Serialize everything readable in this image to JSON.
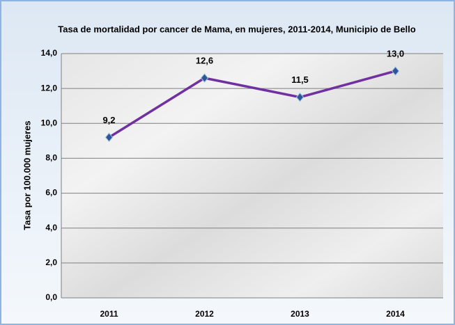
{
  "chart_data": {
    "type": "line",
    "title": "Tasa de mortalidad por cancer de Mama, en mujeres, 2011-2014, Municipio de Bello",
    "ylabel": "Tasa por 100.000 mujeres",
    "categories": [
      "2011",
      "2012",
      "2013",
      "2014"
    ],
    "series": [
      {
        "name": "Tasa",
        "color": "#7030a0",
        "marker_color": "#2f5597",
        "values": [
          9.2,
          12.6,
          11.5,
          13.0
        ],
        "value_labels": [
          "9,2",
          "12,6",
          "11,5",
          "13,0"
        ]
      }
    ],
    "ylim": [
      0,
      14
    ],
    "yticks": [
      {
        "value": 0,
        "label": "0,0"
      },
      {
        "value": 2,
        "label": "2,0"
      },
      {
        "value": 4,
        "label": "4,0"
      },
      {
        "value": 6,
        "label": "6,0"
      },
      {
        "value": 8,
        "label": "8,0"
      },
      {
        "value": 10,
        "label": "10,0"
      },
      {
        "value": 12,
        "label": "12,0"
      },
      {
        "value": 14,
        "label": "14,0"
      }
    ],
    "grid": true
  }
}
